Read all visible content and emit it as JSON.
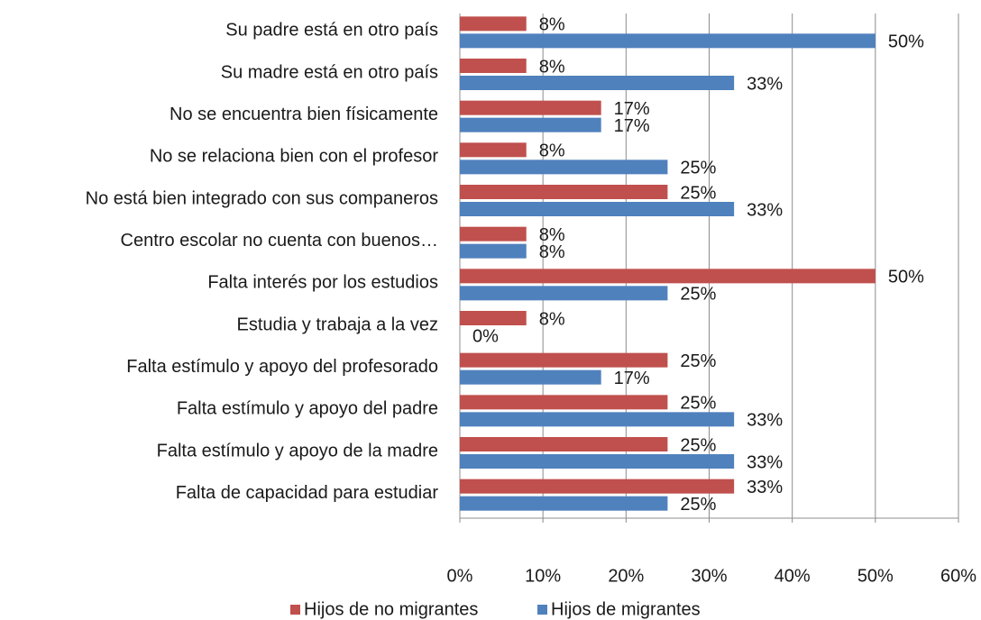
{
  "chart_data": {
    "type": "barh",
    "categories": [
      "Su padre está en otro país",
      "Su madre está en otro país",
      "No se encuentra bien físicamente",
      "No se relaciona bien con el profesor",
      "No está bien integrado con sus companeros",
      "Centro escolar no cuenta con buenos…",
      "Falta interés por los estudios",
      "Estudia y trabaja a la vez",
      "Falta estímulo y apoyo del profesorado",
      "Falta estímulo y apoyo del padre",
      "Falta estímulo y apoyo de la madre",
      "Falta de capacidad para estudiar"
    ],
    "series": [
      {
        "name": "Hijos de no migrantes",
        "color": "#c0504d",
        "values": [
          8,
          8,
          17,
          8,
          25,
          8,
          50,
          8,
          25,
          25,
          25,
          33
        ],
        "value_labels": [
          "8%",
          "8%",
          "17%",
          "8%",
          "25%",
          "8%",
          "50%",
          "8%",
          "25%",
          "25%",
          "25%",
          "33%"
        ]
      },
      {
        "name": "Hijos de migrantes",
        "color": "#4f81bd",
        "values": [
          50,
          33,
          17,
          25,
          33,
          8,
          25,
          0,
          17,
          33,
          33,
          25
        ],
        "value_labels": [
          "50%",
          "33%",
          "17%",
          "25%",
          "33%",
          "8%",
          "25%",
          "0%",
          "17%",
          "33%",
          "33%",
          "25%"
        ]
      }
    ],
    "xlim": [
      0,
      60
    ],
    "xticks": [
      {
        "value": 0,
        "label": "0%"
      },
      {
        "value": 10,
        "label": "10%"
      },
      {
        "value": 20,
        "label": "20%"
      },
      {
        "value": 30,
        "label": "30%"
      },
      {
        "value": 40,
        "label": "40%"
      },
      {
        "value": 50,
        "label": "50%"
      },
      {
        "value": 60,
        "label": "60%"
      }
    ],
    "grid": true,
    "legend": "bottom"
  }
}
